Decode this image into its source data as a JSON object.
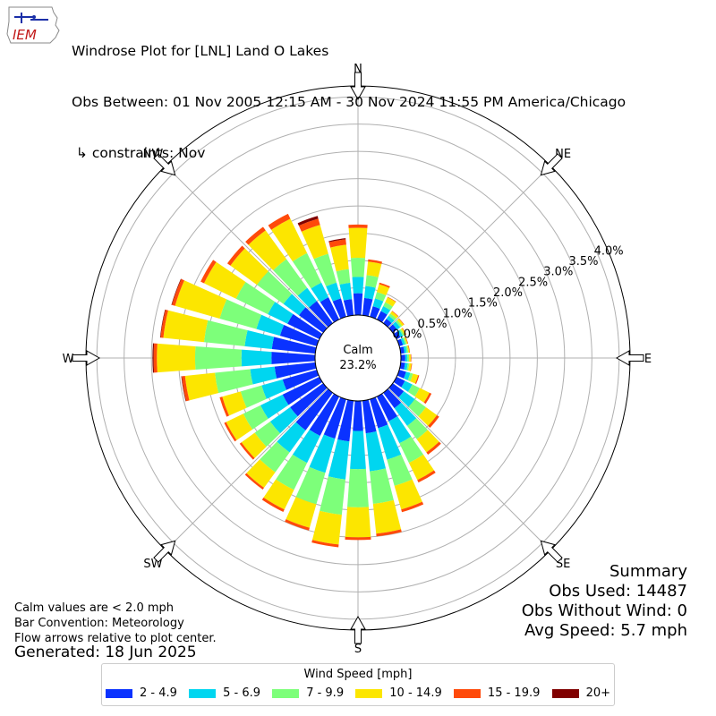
{
  "header": {
    "line1": "Windrose Plot for [LNL] Land O Lakes",
    "line2": "Obs Between: 01 Nov 2005 12:15 AM - 30 Nov 2024 11:55 PM America/Chicago",
    "line3": " ↳ constraints: Nov",
    "logo_text": "IEM"
  },
  "summary": {
    "title": "Summary",
    "obs_used": "Obs Used: 14487",
    "obs_without_wind": "Obs Without Wind: 0",
    "avg_speed": "Avg Speed: 5.7 mph"
  },
  "notes": {
    "calm": "Calm values are < 2.0 mph",
    "bar_convention": "Bar Convention: Meteorology",
    "flow": "Flow arrows relative to plot center."
  },
  "generated": "Generated: 18 Jun 2025",
  "center": {
    "label": "Calm",
    "value": "23.2%"
  },
  "legend": {
    "title": "Wind Speed [mph]",
    "items": [
      {
        "label": "2 - 4.9",
        "color": "#0a32ff"
      },
      {
        "label": "5 - 6.9",
        "color": "#00d6f0"
      },
      {
        "label": "7 - 9.9",
        "color": "#7dff7a"
      },
      {
        "label": "10 - 14.9",
        "color": "#fce600"
      },
      {
        "label": "15 - 19.9",
        "color": "#ff4a0a"
      },
      {
        "label": "20+",
        "color": "#800000"
      }
    ]
  },
  "chart_data": {
    "type": "windrose",
    "title": "Windrose Plot for [LNL] Land O Lakes",
    "direction_labels": [
      "N",
      "NE",
      "E",
      "SE",
      "S",
      "SW",
      "W",
      "NW"
    ],
    "radial_ticks": [
      "0.0%",
      "0.5%",
      "1.0%",
      "1.5%",
      "2.0%",
      "2.5%",
      "3.0%",
      "3.5%",
      "4.0%"
    ],
    "radial_tick_values": [
      0,
      0.5,
      1.0,
      1.5,
      2.0,
      2.5,
      3.0,
      3.5,
      4.0
    ],
    "rmax": 4.2,
    "calm_percent": 23.2,
    "direction_step_deg": 10,
    "directions_deg": [
      0,
      10,
      20,
      30,
      40,
      50,
      60,
      70,
      80,
      90,
      100,
      110,
      120,
      130,
      140,
      150,
      160,
      170,
      180,
      190,
      200,
      210,
      220,
      230,
      240,
      250,
      260,
      270,
      280,
      290,
      300,
      310,
      320,
      330,
      340,
      350
    ],
    "series": [
      {
        "name": "2 - 4.9",
        "values": [
          0.4,
          0.32,
          0.2,
          0.17,
          0.1,
          0.1,
          0.08,
          0.07,
          0.07,
          0.08,
          0.08,
          0.13,
          0.17,
          0.25,
          0.35,
          0.5,
          0.55,
          0.6,
          0.55,
          0.75,
          0.75,
          0.8,
          0.85,
          0.75,
          0.75,
          0.65,
          0.75,
          0.8,
          0.8,
          0.7,
          0.65,
          0.55,
          0.5,
          0.45,
          0.35,
          0.3
        ]
      },
      {
        "name": "5 - 6.9",
        "values": [
          0.3,
          0.22,
          0.15,
          0.1,
          0.07,
          0.07,
          0.05,
          0.04,
          0.04,
          0.04,
          0.05,
          0.08,
          0.15,
          0.25,
          0.4,
          0.45,
          0.6,
          0.7,
          0.7,
          0.7,
          0.65,
          0.55,
          0.5,
          0.45,
          0.45,
          0.4,
          0.45,
          0.55,
          0.5,
          0.45,
          0.4,
          0.35,
          0.3,
          0.3,
          0.3,
          0.3
        ]
      },
      {
        "name": "7 - 9.9",
        "values": [
          0.35,
          0.2,
          0.12,
          0.08,
          0.05,
          0.04,
          0.03,
          0.03,
          0.03,
          0.03,
          0.03,
          0.05,
          0.15,
          0.25,
          0.3,
          0.4,
          0.5,
          0.6,
          0.7,
          0.65,
          0.6,
          0.55,
          0.45,
          0.35,
          0.35,
          0.4,
          0.65,
          0.85,
          0.75,
          0.7,
          0.65,
          0.6,
          0.65,
          0.6,
          0.55,
          0.25
        ]
      },
      {
        "name": "10 - 14.9",
        "values": [
          0.55,
          0.25,
          0.15,
          0.1,
          0.05,
          0.04,
          0.03,
          0.02,
          0.02,
          0.03,
          0.04,
          0.1,
          0.2,
          0.25,
          0.3,
          0.35,
          0.45,
          0.55,
          0.55,
          0.55,
          0.45,
          0.4,
          0.35,
          0.3,
          0.35,
          0.35,
          0.55,
          0.7,
          0.75,
          0.85,
          0.65,
          0.6,
          0.65,
          0.7,
          0.55,
          0.45
        ]
      },
      {
        "name": "15 - 19.9",
        "values": [
          0.06,
          0.04,
          0.03,
          0.01,
          0.01,
          0.01,
          0.01,
          0.01,
          0.01,
          0.01,
          0.01,
          0.02,
          0.04,
          0.05,
          0.05,
          0.05,
          0.05,
          0.05,
          0.05,
          0.05,
          0.05,
          0.05,
          0.04,
          0.04,
          0.04,
          0.05,
          0.06,
          0.06,
          0.05,
          0.06,
          0.07,
          0.07,
          0.08,
          0.1,
          0.12,
          0.1
        ]
      },
      {
        "name": "20+",
        "values": [
          0,
          0,
          0,
          0,
          0,
          0,
          0,
          0,
          0,
          0,
          0,
          0,
          0,
          0,
          0,
          0,
          0,
          0,
          0,
          0,
          0,
          0,
          0,
          0,
          0,
          0,
          0.01,
          0.02,
          0.01,
          0.01,
          0,
          0,
          0,
          0,
          0.05,
          0.02
        ]
      }
    ]
  }
}
